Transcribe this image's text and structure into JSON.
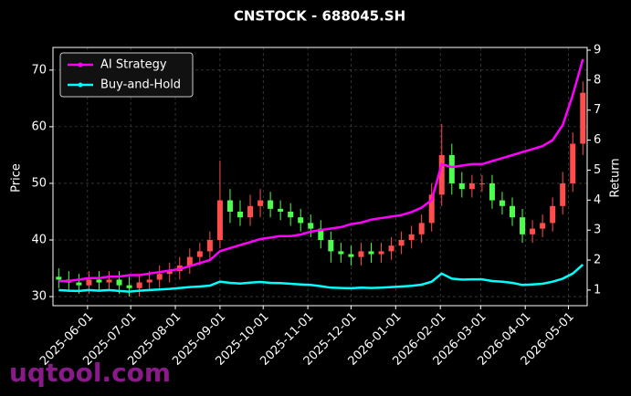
{
  "chart_data": {
    "type": "candlestick",
    "title": "CNSTOCK - 688045.SH",
    "ylabel": "Price",
    "y2label": "Return",
    "x": [
      "2025-05-12",
      "2025-05-19",
      "2025-05-26",
      "2025-06-02",
      "2025-06-09",
      "2025-06-16",
      "2025-06-23",
      "2025-06-30",
      "2025-07-07",
      "2025-07-14",
      "2025-07-21",
      "2025-07-28",
      "2025-08-04",
      "2025-08-11",
      "2025-08-18",
      "2025-08-25",
      "2025-09-01",
      "2025-09-08",
      "2025-09-15",
      "2025-09-22",
      "2025-09-29",
      "2025-10-06",
      "2025-10-13",
      "2025-10-20",
      "2025-10-27",
      "2025-11-03",
      "2025-11-10",
      "2025-11-17",
      "2025-11-24",
      "2025-12-01",
      "2025-12-08",
      "2025-12-15",
      "2025-12-22",
      "2025-12-29",
      "2026-01-05",
      "2026-01-12",
      "2026-01-19",
      "2026-01-26",
      "2026-02-02",
      "2026-02-09",
      "2026-02-16",
      "2026-02-23",
      "2026-03-02",
      "2026-03-09",
      "2026-03-16",
      "2026-03-23",
      "2026-03-30",
      "2026-04-06",
      "2026-04-13",
      "2026-04-20",
      "2026-04-27",
      "2026-05-04",
      "2026-05-11"
    ],
    "open": [
      33.5,
      33,
      32.5,
      32,
      33,
      32.5,
      33,
      32,
      31.5,
      32.5,
      33,
      34,
      34.5,
      35.5,
      37,
      38,
      40,
      47,
      45,
      44,
      46,
      47,
      45.5,
      45,
      44,
      43,
      42,
      40,
      38,
      37.5,
      37,
      38,
      37.5,
      38,
      39,
      40,
      41,
      43,
      48,
      55,
      50,
      49,
      50,
      50,
      47,
      46,
      44,
      41,
      42,
      43,
      46,
      50,
      57
    ],
    "high": [
      35,
      34.5,
      34,
      34.5,
      34.5,
      34.5,
      34.5,
      33.5,
      34,
      34.5,
      35.5,
      36,
      37,
      38.5,
      39.5,
      41.5,
      54,
      49,
      47,
      48,
      49,
      48.5,
      47,
      46.5,
      45.5,
      44.5,
      43.5,
      41.5,
      39.5,
      39,
      39.5,
      39.5,
      39.5,
      40.5,
      41.5,
      42.5,
      44.5,
      50,
      60.5,
      57,
      52,
      51.5,
      51.5,
      51.5,
      48.5,
      47.5,
      45.5,
      43.5,
      44.5,
      47.5,
      52,
      59,
      68
    ],
    "low": [
      31.5,
      31,
      30.5,
      30.5,
      31,
      31,
      30.5,
      30,
      30,
      31,
      31.5,
      32.5,
      33,
      34,
      35.5,
      36.5,
      38.5,
      43,
      42.5,
      42.5,
      44,
      44,
      43.5,
      42.5,
      41.5,
      40.5,
      38.5,
      36,
      36,
      35.5,
      35.5,
      36,
      36,
      36.5,
      37.5,
      38.5,
      39.5,
      41.5,
      46,
      48,
      47.5,
      47.5,
      48.5,
      45.5,
      44.5,
      42.5,
      39.5,
      39.5,
      40.5,
      41.5,
      44.5,
      48.5,
      55
    ],
    "close": [
      33,
      32.5,
      32,
      33,
      32.5,
      33,
      32,
      31.5,
      32.5,
      33,
      34,
      34.5,
      35.5,
      37,
      38,
      40,
      47,
      45,
      44,
      46,
      47,
      45.5,
      45,
      44,
      43,
      42,
      40,
      38,
      37.5,
      37,
      38,
      37.5,
      38,
      39,
      40,
      41,
      43,
      48,
      55,
      50,
      49,
      50,
      50,
      47,
      46,
      44,
      41,
      42,
      43,
      46,
      50,
      57,
      66
    ],
    "up_color": "#ff4d4d",
    "down_color": "#4dff4d",
    "series": [
      {
        "name": "AI Strategy",
        "color": "#ff00ff",
        "axis": "y2",
        "values": [
          1.3,
          1.3,
          1.35,
          1.4,
          1.4,
          1.45,
          1.45,
          1.5,
          1.5,
          1.55,
          1.6,
          1.65,
          1.7,
          1.8,
          1.9,
          2.0,
          2.3,
          2.4,
          2.5,
          2.6,
          2.7,
          2.75,
          2.8,
          2.8,
          2.85,
          2.95,
          3.0,
          3.05,
          3.1,
          3.2,
          3.25,
          3.35,
          3.4,
          3.45,
          3.5,
          3.6,
          3.75,
          4.0,
          5.2,
          5.1,
          5.15,
          5.2,
          5.2,
          5.3,
          5.4,
          5.5,
          5.6,
          5.7,
          5.8,
          6.0,
          6.5,
          7.5,
          8.7
        ]
      },
      {
        "name": "Buy-and-Hold",
        "color": "#00ffff",
        "axis": "y2",
        "values": [
          1.0,
          0.98,
          0.97,
          1.0,
          0.98,
          1.0,
          0.97,
          0.95,
          0.98,
          1.0,
          1.02,
          1.04,
          1.07,
          1.1,
          1.12,
          1.15,
          1.28,
          1.24,
          1.22,
          1.25,
          1.27,
          1.24,
          1.23,
          1.21,
          1.19,
          1.17,
          1.13,
          1.08,
          1.07,
          1.06,
          1.08,
          1.07,
          1.08,
          1.1,
          1.12,
          1.14,
          1.18,
          1.28,
          1.55,
          1.38,
          1.35,
          1.36,
          1.36,
          1.3,
          1.28,
          1.24,
          1.17,
          1.19,
          1.21,
          1.28,
          1.38,
          1.55,
          1.85
        ]
      }
    ],
    "xlim": [
      "2025-05-08",
      "2026-05-14"
    ],
    "xticks": [
      "2025-06-01",
      "2025-07-01",
      "2025-08-01",
      "2025-09-01",
      "2025-10-01",
      "2025-11-01",
      "2025-12-01",
      "2026-01-01",
      "2026-02-01",
      "2026-03-01",
      "2026-04-01",
      "2026-05-01"
    ],
    "ylim": [
      28.4,
      74
    ],
    "yticks": [
      30,
      40,
      50,
      60,
      70
    ],
    "y2lim": [
      0.48,
      9.09
    ],
    "y2ticks": [
      1,
      2,
      3,
      4,
      5,
      6,
      7,
      8,
      9
    ],
    "grid": true,
    "legend": "upper left"
  },
  "watermark": "uqtool.com"
}
